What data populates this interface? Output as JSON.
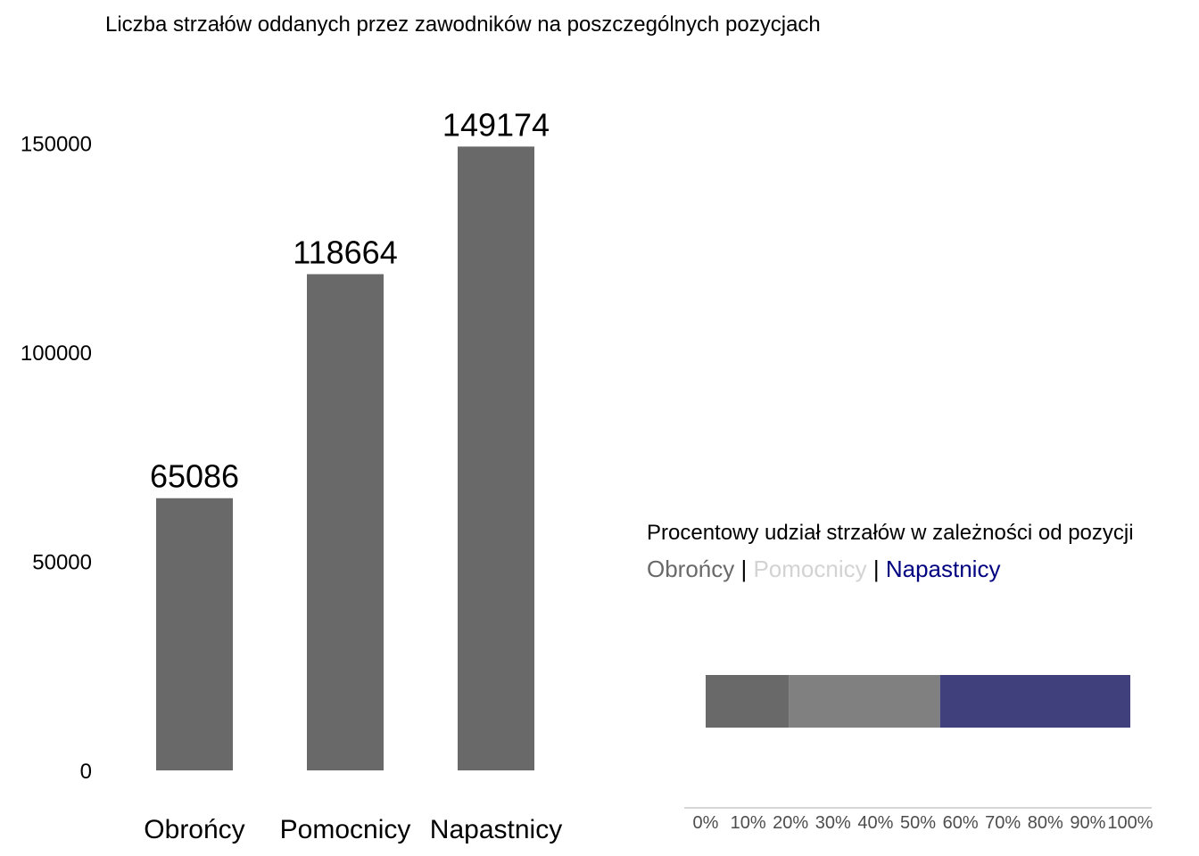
{
  "chart_data": [
    {
      "type": "bar",
      "title": "Liczba strzałów oddanych przez zawodników na poszczególnych pozycjach",
      "xlabel": "",
      "ylabel": "",
      "categories": [
        "Obrońcy",
        "Pomocnicy",
        "Napastnicy"
      ],
      "values": [
        65086,
        118664,
        149174
      ],
      "data_labels": [
        "65086",
        "118664",
        "149174"
      ],
      "ylim": [
        0,
        155000
      ],
      "yticks": [
        0,
        50000,
        100000,
        150000
      ],
      "ytick_labels": [
        "0",
        "50000",
        "100000",
        "150000"
      ],
      "grid": false,
      "bar_color": "#696969"
    },
    {
      "type": "bar",
      "orientation": "horizontal-stacked",
      "title": "Procentowy udział strzałów w zależności od pozycji",
      "legend": [
        {
          "name": "Obrońcy",
          "color": "#696969"
        },
        {
          "name": "Pomocnicy",
          "color": "#d3d3d3"
        },
        {
          "name": "Napastnicy",
          "color": "#000080"
        }
      ],
      "legend_separator": "|",
      "series": [
        {
          "name": "Obrońcy",
          "value": 0.1955,
          "color": "#696969"
        },
        {
          "name": "Pomocnicy",
          "value": 0.3564,
          "color": "#808080"
        },
        {
          "name": "Napastnicy",
          "value": 0.4481,
          "color": "#40407c"
        }
      ],
      "xlim": [
        0,
        1
      ],
      "xticks": [
        0,
        0.1,
        0.2,
        0.3,
        0.4,
        0.5,
        0.6,
        0.7,
        0.8,
        0.9,
        1.0
      ],
      "xtick_labels": [
        "0%",
        "10%",
        "20%",
        "30%",
        "40%",
        "50%",
        "60%",
        "70%",
        "80%",
        "90%",
        "100%"
      ],
      "grid": false
    }
  ]
}
